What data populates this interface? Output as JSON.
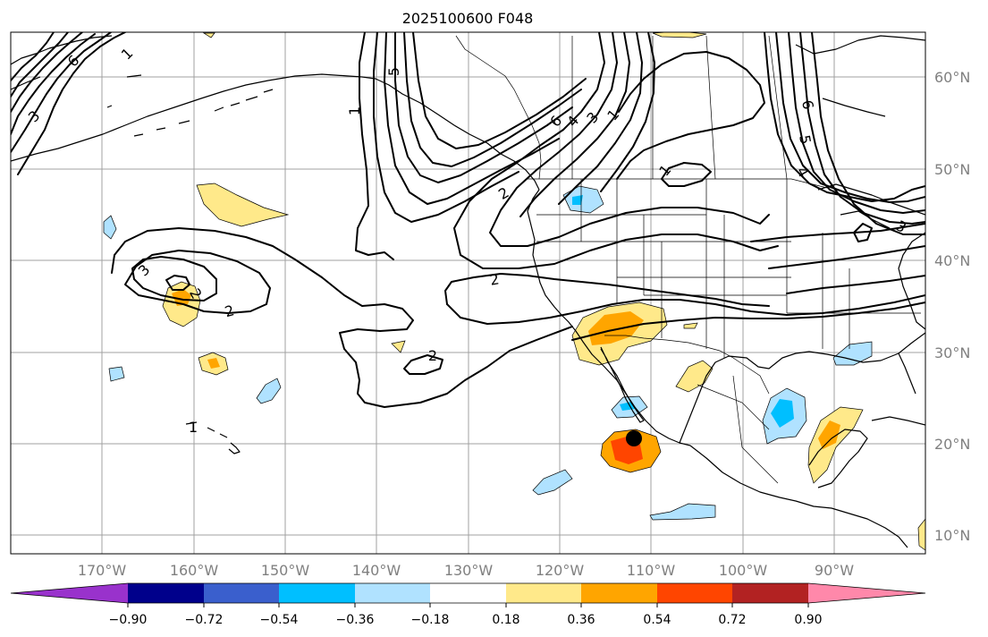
{
  "title": "2025100600 F048",
  "lat_labels": [
    "60°N",
    "50°N",
    "40°N",
    "30°N",
    "20°N",
    "10°N"
  ],
  "lon_labels": [
    "170°W",
    "160°W",
    "150°W",
    "140°W",
    "130°W",
    "120°W",
    "110°W",
    "100°W",
    "90°W"
  ],
  "colorbar": {
    "ticks": [
      "−0.90",
      "−0.72",
      "−0.54",
      "−0.36",
      "−0.18",
      "0.18",
      "0.36",
      "0.54",
      "0.72",
      "0.90"
    ],
    "colors": [
      "#9932cc",
      "#00008b",
      "#3a5fcd",
      "#00bfff",
      "#b0e2ff",
      "#ffffff",
      "#ffe98a",
      "#ffa500",
      "#ff4500",
      "#b22222",
      "#ff88aa"
    ]
  },
  "contour_labels": [
    "6",
    "1",
    "3",
    "1",
    "5",
    "6",
    "4",
    "3",
    "1",
    "1",
    "6",
    "5",
    "4",
    "3",
    "2",
    "3",
    "2",
    "2",
    "2",
    "2",
    "1"
  ],
  "colors": {
    "shade_light_orange": "#ffe98a",
    "shade_orange": "#ffa500",
    "shade_red": "#ff4500",
    "shade_light_blue": "#b0e2ff",
    "shade_blue": "#00bfff",
    "grid": "#a0a0a0",
    "axis_label": "#808080",
    "marker": "#000000"
  },
  "chart_data": {
    "type": "map",
    "title": "2025100600 F048",
    "lon_range": [
      -180,
      -80
    ],
    "lat_range": [
      8,
      65
    ],
    "contour_levels": [
      1,
      2,
      3,
      4,
      5,
      6
    ],
    "shading_levels": [
      -0.9,
      -0.72,
      -0.54,
      -0.36,
      -0.18,
      0.18,
      0.36,
      0.54,
      0.72,
      0.9
    ],
    "marker": {
      "lon": -112,
      "lat": 20.5
    }
  }
}
